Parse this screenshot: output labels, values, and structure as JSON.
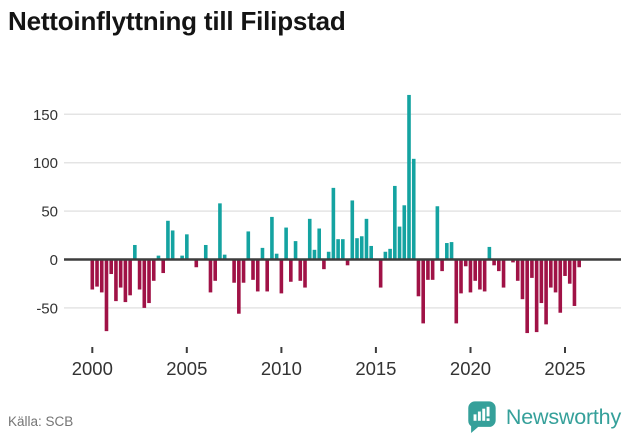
{
  "header": {
    "title": "Nettoinflyttning till Filipstad"
  },
  "footer": {
    "source": "Källa: SCB",
    "brand": "Newsworthy"
  },
  "colors": {
    "positive": "#14a3a1",
    "negative": "#a01246",
    "grid": "#e4e4e4",
    "zero_line": "#3d3d3d",
    "axis_text": "#333333",
    "title_text": "#141414",
    "muted_text": "#757575",
    "brand": "#35a09a"
  },
  "chart_data": {
    "type": "bar",
    "title": "Nettoinflyttning till Filipstad",
    "frequency": "quarterly",
    "period_start": "2000-Q1",
    "period_end": "2025-Q4",
    "xlabel": "",
    "ylabel": "",
    "x_tick_years": [
      2000,
      2005,
      2010,
      2015,
      2020,
      2025
    ],
    "y_ticks": [
      150,
      100,
      50,
      0,
      -50
    ],
    "ylim": [
      -85,
      180
    ],
    "grid": true,
    "legend": false,
    "series": [
      {
        "name": "Nettoinflyttning",
        "values": [
          -31,
          -28,
          -34,
          -74,
          -15,
          -43,
          -29,
          -44,
          -37,
          15,
          -31,
          -50,
          -45,
          -22,
          4,
          -14,
          40,
          30,
          0,
          4,
          26,
          0,
          -8,
          0,
          15,
          -34,
          -22,
          58,
          5,
          0,
          -24,
          -56,
          -24,
          29,
          -21,
          -33,
          12,
          -33,
          44,
          6,
          -35,
          33,
          -23,
          19,
          -22,
          -29,
          42,
          10,
          32,
          -10,
          8,
          74,
          21,
          21,
          -6,
          61,
          22,
          24,
          42,
          14,
          0,
          -29,
          8,
          11,
          76,
          34,
          56,
          170,
          104,
          -38,
          -66,
          -21,
          -21,
          55,
          -12,
          17,
          18,
          -66,
          -35,
          -7,
          -34,
          -22,
          -31,
          -33,
          13,
          -6,
          -12,
          -29,
          0,
          -3,
          -22,
          -41,
          -76,
          -19,
          -75,
          -45,
          -67,
          -29,
          -34,
          -55,
          -17,
          -25,
          -48,
          -8
        ]
      }
    ]
  }
}
